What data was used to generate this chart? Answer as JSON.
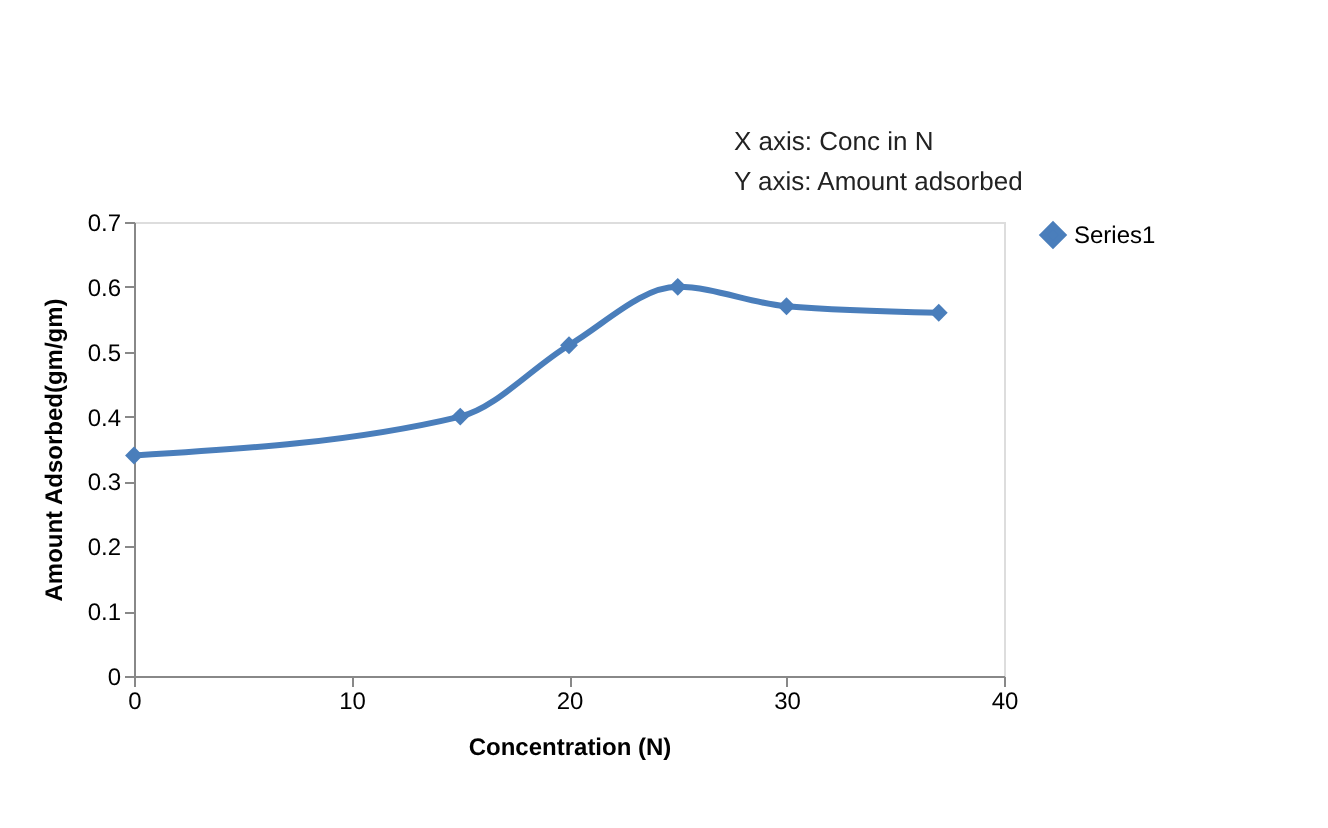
{
  "chart_data": {
    "type": "line",
    "xlabel": "Concentration (N)",
    "ylabel": "Amount Adsorbed(gm/gm)",
    "annotations": [
      "X axis: Conc in N",
      "Y axis: Amount  adsorbed"
    ],
    "x": [
      0,
      15,
      20,
      25,
      30,
      37
    ],
    "series": [
      {
        "name": "Series1",
        "color": "#4a7ebb",
        "values": [
          0.34,
          0.4,
          0.51,
          0.6,
          0.57,
          0.56
        ]
      }
    ],
    "xlim": [
      0,
      40
    ],
    "xticks": [
      0,
      10,
      20,
      30,
      40
    ],
    "ylim": [
      0,
      0.7
    ],
    "yticks": [
      0,
      0.1,
      0.2,
      0.3,
      0.4,
      0.5,
      0.6,
      0.7
    ],
    "grid": false,
    "legend": "right",
    "marker": "diamond",
    "line_style": "solid"
  }
}
